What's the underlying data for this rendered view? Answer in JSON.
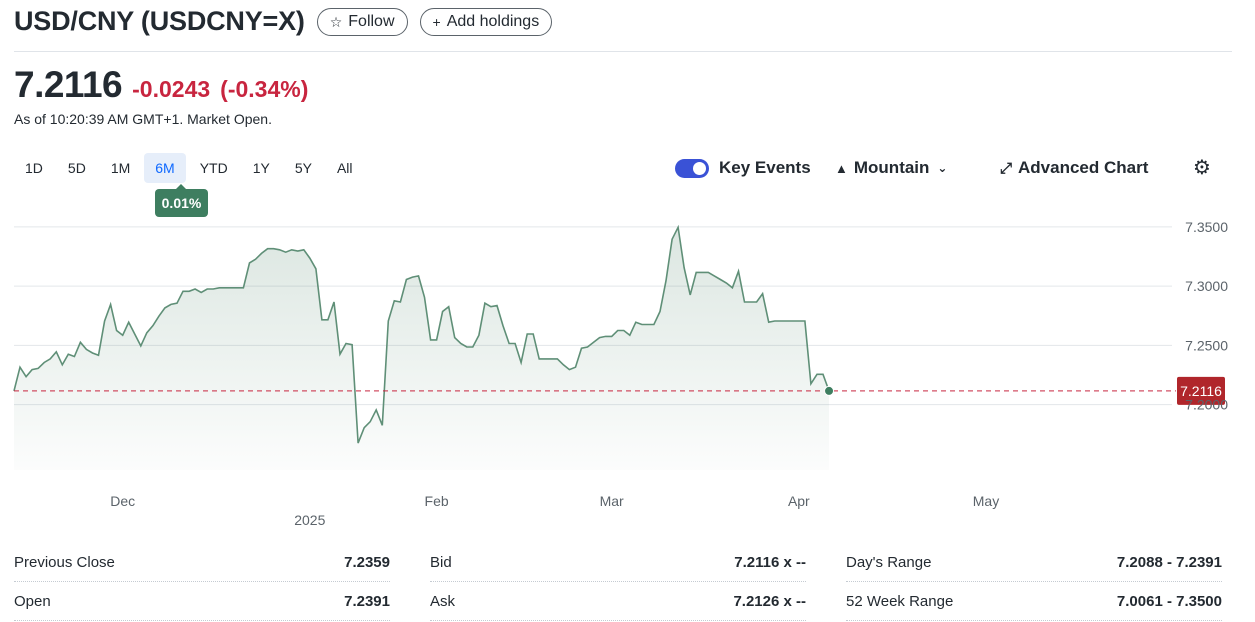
{
  "header": {
    "title": "USD/CNY (USDCNY=X)",
    "follow_label": "Follow",
    "add_label": "Add holdings"
  },
  "quote": {
    "price": "7.2116",
    "change": "-0.0243",
    "change_pct": "(-0.34%)",
    "as_of": "As of 10:20:39 AM GMT+1. Market Open."
  },
  "ranges": [
    "1D",
    "5D",
    "1M",
    "6M",
    "YTD",
    "1Y",
    "5Y",
    "All"
  ],
  "active_range": "6M",
  "range_badge": "0.01%",
  "controls": {
    "key_events": "Key Events",
    "chart_type": "Mountain",
    "advanced": "Advanced Chart"
  },
  "colors": {
    "line": "#5f8f77",
    "down": "#c8253f",
    "accent": "#0f69ff",
    "toggle": "#3a52d6"
  },
  "icons": {
    "follow": "star-icon",
    "add": "plus-icon",
    "chart_type": "mountain-icon",
    "advanced": "expand-arrows-icon",
    "settings": "gear-icon"
  },
  "chart_data": {
    "type": "area",
    "title": "",
    "xlabel": "",
    "ylabel": "",
    "x_ticks": [
      {
        "label": "Dec",
        "x": 18
      },
      {
        "label": "Feb",
        "x": 70
      },
      {
        "label": "Mar",
        "x": 99
      },
      {
        "label": "Apr",
        "x": 130
      },
      {
        "label": "May",
        "x": 161
      }
    ],
    "year_label": {
      "label": "2025",
      "x": 49
    },
    "y_ticks": [
      "7.3500",
      "7.3000",
      "7.2500",
      "7.2000"
    ],
    "y_tick_values": [
      7.35,
      7.3,
      7.25,
      7.2
    ],
    "ylim": [
      7.155,
      7.36
    ],
    "xlim": [
      0,
      188
    ],
    "grid": true,
    "reference_value": 7.2116,
    "last_label": "7.2116",
    "values": [
      7.2116,
      7.2316,
      7.2236,
      7.2296,
      7.2306,
      7.2356,
      7.2386,
      7.2446,
      7.2336,
      7.2426,
      7.2406,
      7.2526,
      7.2466,
      7.2436,
      7.2416,
      7.2706,
      7.2846,
      7.2626,
      7.2586,
      7.2696,
      7.2596,
      7.2496,
      7.2606,
      7.2666,
      7.2746,
      7.2816,
      7.2846,
      7.2856,
      7.2956,
      7.2956,
      7.2976,
      7.2946,
      7.2976,
      7.2976,
      7.2986,
      7.2986,
      7.2986,
      7.2986,
      7.2986,
      7.3196,
      7.3226,
      7.3276,
      7.3316,
      7.3316,
      7.3306,
      7.3286,
      7.3306,
      7.3296,
      7.3306,
      7.3236,
      7.3146,
      7.2716,
      7.2716,
      7.2866,
      7.2426,
      7.2516,
      7.2506,
      7.1676,
      7.1806,
      7.1856,
      7.1956,
      7.1826,
      7.2706,
      7.2876,
      7.2866,
      7.3056,
      7.3076,
      7.3086,
      7.2906,
      7.2546,
      7.2546,
      7.2786,
      7.2826,
      7.2566,
      7.2516,
      7.2486,
      7.2486,
      7.2586,
      7.2856,
      7.2826,
      7.2836,
      7.2666,
      7.2516,
      7.2516,
      7.2356,
      7.2596,
      7.2596,
      7.2386,
      7.2386,
      7.2386,
      7.2386,
      7.2336,
      7.2296,
      7.2316,
      7.2476,
      7.2486,
      7.2526,
      7.2566,
      7.2576,
      7.2576,
      7.2626,
      7.2626,
      7.2586,
      7.2696,
      7.2676,
      7.2676,
      7.2676,
      7.2786,
      7.3046,
      7.3396,
      7.3496,
      7.3156,
      7.2926,
      7.3116,
      7.3116,
      7.3116,
      7.3086,
      7.3056,
      7.3026,
      7.2986,
      7.3126,
      7.2866,
      7.2866,
      7.2866,
      7.2936,
      7.2696,
      7.2706,
      7.2706,
      7.2706,
      7.2706,
      7.2706,
      7.2706,
      7.2176,
      7.2256,
      7.2256,
      7.2116
    ]
  },
  "stats": [
    [
      {
        "label": "Previous Close",
        "value": "7.2359"
      },
      {
        "label": "Bid",
        "value": "7.2116 x --"
      },
      {
        "label": "Day's Range",
        "value": "7.2088 - 7.2391"
      }
    ],
    [
      {
        "label": "Open",
        "value": "7.2391"
      },
      {
        "label": "Ask",
        "value": "7.2126 x --"
      },
      {
        "label": "52 Week Range",
        "value": "7.0061 - 7.3500"
      }
    ]
  ]
}
